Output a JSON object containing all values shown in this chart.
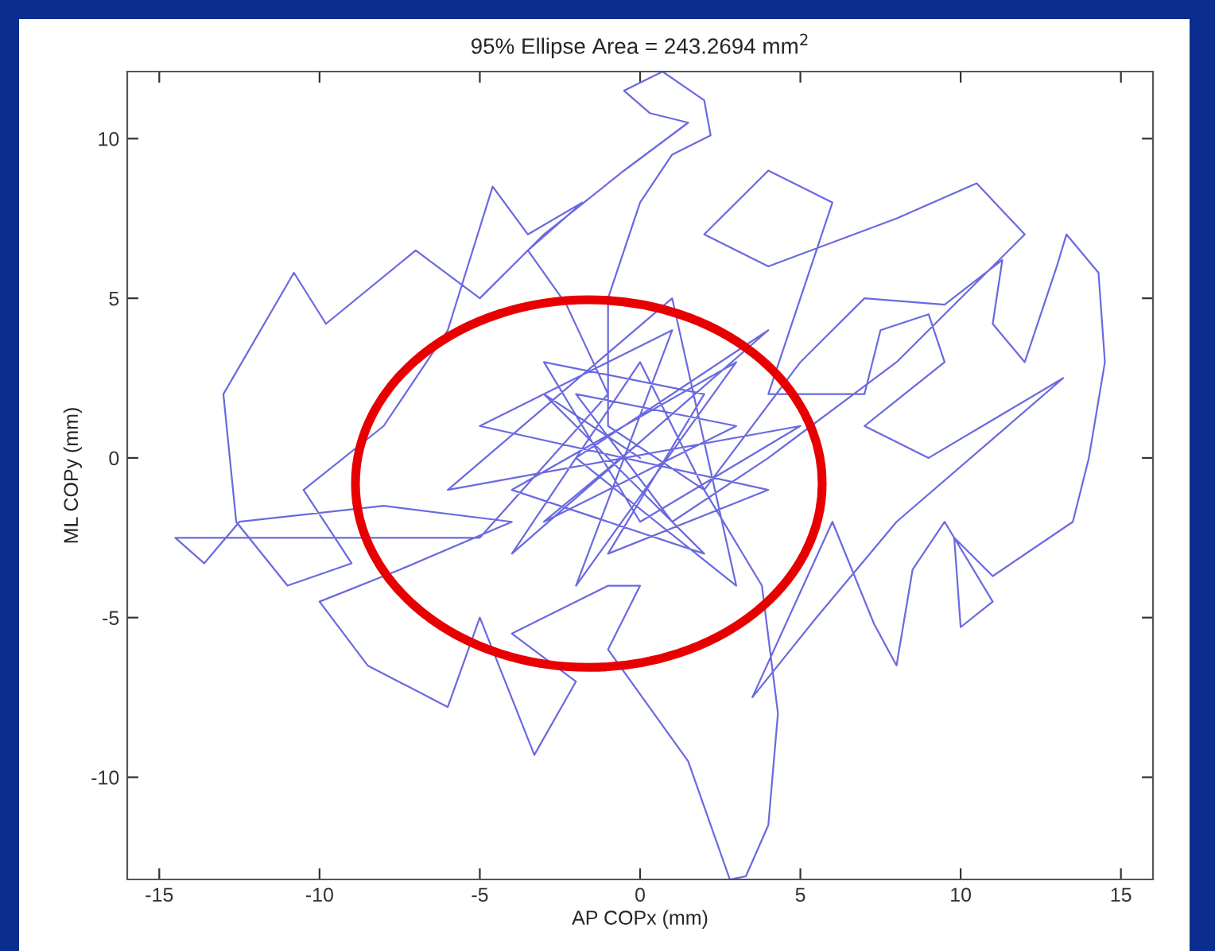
{
  "chart_data": {
    "type": "line",
    "title": "95% Ellipse Area = 243.2694 mm$^{2}$",
    "xlabel": "AP COPx (mm)",
    "ylabel": "ML COPy (mm)",
    "xlim": [
      -16,
      16
    ],
    "ylim": [
      -13.2,
      12.1
    ],
    "xticks": [
      -15,
      -10,
      -5,
      0,
      5,
      10,
      15
    ],
    "yticks": [
      -10,
      -5,
      0,
      5,
      10
    ],
    "grid": false,
    "marker": "none",
    "line_style": "solid",
    "series": [
      {
        "color": "#6a6ae0",
        "x": [
          0,
          -3,
          2,
          -4,
          3,
          -2,
          1,
          -5,
          4,
          -1,
          2,
          -3,
          0,
          5,
          -6,
          1,
          3,
          -2,
          4,
          -4,
          0,
          2,
          -1,
          -1,
          0,
          1,
          2.2,
          2,
          0.7,
          -0.5,
          0.3,
          1.5,
          -0.5,
          -3,
          -5,
          -7,
          -9.8,
          -10.8,
          -13,
          -12.6,
          -11,
          -9,
          -10.5,
          -8,
          -6,
          -4.6,
          -3.5,
          -1.8,
          -3.5,
          -2.3,
          -1,
          -5,
          -9,
          -14.5,
          -13.6,
          -12.5,
          -8,
          -4,
          -7.5,
          -10,
          -8.5,
          -6,
          -5,
          -3.3,
          -2,
          -4,
          -1,
          0,
          -1,
          1.5,
          2.8,
          3.3,
          4,
          4.3,
          3.8,
          2,
          5,
          7,
          9.5,
          11.3,
          11,
          12,
          13,
          13.3,
          14.3,
          14.5,
          14,
          13.5,
          11,
          9.8,
          10,
          11,
          9.5,
          8.5,
          8,
          7.3,
          6,
          3.5,
          5.5,
          8,
          13.2,
          9,
          7,
          9.5,
          9,
          7.5,
          7,
          4,
          5,
          6,
          4,
          2,
          4,
          8,
          10.5,
          12,
          8,
          4,
          1,
          -2,
          3,
          -3,
          0
        ],
        "values": [
          0,
          2,
          -3,
          -1,
          3,
          -4,
          4,
          1,
          -1,
          -3,
          2,
          3,
          -2,
          1,
          -1,
          5,
          -4,
          0,
          4,
          -3,
          3,
          -1,
          1,
          5,
          8,
          9.5,
          10.1,
          11.2,
          12.1,
          11.5,
          10.8,
          10.5,
          9,
          7,
          5,
          6.5,
          4.2,
          5.8,
          2,
          -2,
          -4,
          -3.3,
          -1,
          1,
          4,
          8.5,
          7,
          8,
          6.5,
          4.8,
          2,
          -2.5,
          -2.5,
          -2.5,
          -3.3,
          -2,
          -1.5,
          -2,
          -3.5,
          -4.5,
          -6.5,
          -7.8,
          -5,
          -9.3,
          -7,
          -5.5,
          -4,
          -4,
          -6,
          -9.5,
          -13.2,
          -13.1,
          -11.5,
          -8,
          -4,
          -1,
          3,
          5,
          4.8,
          6.2,
          4.2,
          3,
          6,
          7,
          5.8,
          3,
          0,
          -2,
          -3.7,
          -2.5,
          -5.3,
          -4.5,
          -2,
          -3.5,
          -6.5,
          -5.2,
          -2,
          -7.5,
          -5,
          -2,
          2.5,
          0,
          1,
          3,
          4.5,
          4,
          2,
          2,
          5,
          8,
          9,
          7,
          6,
          7.5,
          8.6,
          7,
          3,
          0,
          -2,
          2,
          1,
          -2,
          0.5
        ]
      }
    ]
  }
}
